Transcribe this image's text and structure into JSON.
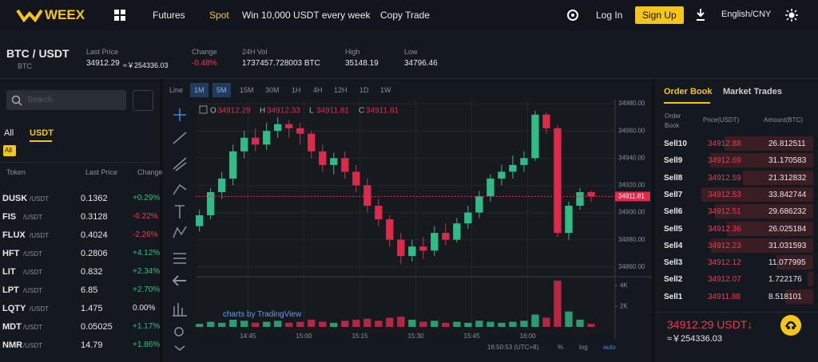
{
  "nav": {
    "logo": "WEEX",
    "items": [
      "Futures",
      "Spot",
      "Win 10,000 USDT every week",
      "Copy Trade"
    ],
    "login": "Log In",
    "signup": "Sign Up",
    "language": "English/CNY"
  },
  "ticker": {
    "pair": "BTC / USDT",
    "base": "BTC",
    "last_label": "Last Price",
    "last": "34912.29",
    "last_approx": "≈￥254336.03",
    "stats": [
      {
        "label": "Change",
        "value": "-0.48%"
      },
      {
        "label": "24H Vol",
        "value": "1737457.728003 BTC"
      },
      {
        "label": "High",
        "value": "35148.19"
      },
      {
        "label": "Low",
        "value": "34796.46"
      }
    ]
  },
  "markets": {
    "search": "Search",
    "tabs": [
      "All",
      "USDT"
    ],
    "chip": "All",
    "headers": [
      "Token",
      "Last Price",
      "Change"
    ],
    "rows": [
      {
        "token": "DUSK",
        "quote": "/USDT",
        "price": "0.1362",
        "change": "+0.29%"
      },
      {
        "token": "FIS",
        "quote": "/USDT",
        "price": "0.3128",
        "change": "-0.22%"
      },
      {
        "token": "FLUX",
        "quote": "/USDT",
        "price": "0.4024",
        "change": "-2.26%"
      },
      {
        "token": "HFT",
        "quote": "/USDT",
        "price": "0.2806",
        "change": "+4.12%"
      },
      {
        "token": "LIT",
        "quote": "/USDT",
        "price": "0.832",
        "change": "+2.34%"
      },
      {
        "token": "LPT",
        "quote": "/USDT",
        "price": "6.85",
        "change": "+2.70%"
      },
      {
        "token": "LQTY",
        "quote": "/USDT",
        "price": "1.475",
        "change": "0.00%"
      },
      {
        "token": "MDT",
        "quote": "/USDT",
        "price": "0.05025",
        "change": "+1.17%"
      },
      {
        "token": "NMR",
        "quote": "/USDT",
        "price": "14.79",
        "change": "+1.86%"
      }
    ]
  },
  "toolbar": {
    "intervals": [
      "Line",
      "1M",
      "5M",
      "15M",
      "30M",
      "1H",
      "4H",
      "12H",
      "1D",
      "1W"
    ],
    "watermark": "charts by TradingView",
    "clock": "16:50:53 (UTC+8)",
    "options": [
      "%",
      "log",
      "auto"
    ]
  },
  "chart_data": {
    "type": "candlestick",
    "up_color": "#2ebd85",
    "down_color": "#e0294a",
    "ohlc_legend": [
      {
        "key": "O",
        "value": 34912.29
      },
      {
        "key": "H",
        "value": 34912.33
      },
      {
        "key": "L",
        "value": 34911.81
      },
      {
        "key": "C",
        "value": 34911.81
      }
    ],
    "last_price": 34911.81,
    "x": [
      872,
      875,
      878,
      881,
      884,
      887,
      890,
      893,
      896,
      899,
      902,
      905,
      908,
      911,
      914,
      917,
      920,
      923,
      926,
      929,
      932,
      935,
      938,
      941,
      944,
      947,
      950,
      953,
      956,
      959,
      962,
      965,
      968,
      971,
      974,
      977
    ],
    "open": [
      34890,
      34898,
      34915,
      34925,
      34945,
      34955,
      34950,
      34960,
      34965,
      34962,
      34958,
      34945,
      34935,
      34940,
      34930,
      34920,
      34905,
      34895,
      34880,
      34868,
      34875,
      34872,
      34885,
      34880,
      34892,
      34900,
      34912,
      34925,
      34930,
      34935,
      34940,
      34972,
      34962,
      34885,
      34905,
      34915
    ],
    "high": [
      34902,
      34918,
      34930,
      34950,
      34960,
      34962,
      34966,
      34970,
      34968,
      34966,
      34960,
      34950,
      34944,
      34945,
      34935,
      34925,
      34910,
      34898,
      34885,
      34880,
      34882,
      34890,
      34892,
      34896,
      34905,
      34916,
      34928,
      34935,
      34942,
      34945,
      34975,
      34974,
      34964,
      34908,
      34918,
      34916
    ],
    "low": [
      34886,
      34895,
      34910,
      34920,
      34940,
      34945,
      34946,
      34955,
      34955,
      34950,
      34940,
      34930,
      34928,
      34925,
      34915,
      34900,
      34890,
      34875,
      34862,
      34864,
      34866,
      34868,
      34876,
      34878,
      34888,
      34896,
      34908,
      34920,
      34925,
      34930,
      34938,
      34958,
      34882,
      34880,
      34902,
      34908
    ],
    "close": [
      34898,
      34915,
      34925,
      34945,
      34955,
      34950,
      34960,
      34965,
      34962,
      34958,
      34945,
      34935,
      34940,
      34930,
      34920,
      34905,
      34895,
      34880,
      34868,
      34875,
      34872,
      34885,
      34880,
      34892,
      34900,
      34912,
      34925,
      34930,
      34935,
      34940,
      34972,
      34962,
      34885,
      34905,
      34915,
      34912
    ],
    "volume": [
      300,
      500,
      400,
      700,
      600,
      400,
      500,
      600,
      400,
      500,
      700,
      500,
      400,
      600,
      700,
      800,
      600,
      900,
      1000,
      700,
      500,
      600,
      400,
      500,
      400,
      600,
      500,
      400,
      500,
      600,
      1200,
      900,
      4500,
      1500,
      700,
      300
    ],
    "xlim": [
      871,
      983
    ],
    "xticks": [
      {
        "value": 885,
        "label": "14:45"
      },
      {
        "value": 900,
        "label": "15:00"
      },
      {
        "value": 915,
        "label": "15:15"
      },
      {
        "value": 930,
        "label": "15:30"
      },
      {
        "value": 945,
        "label": "15:45"
      },
      {
        "value": 960,
        "label": "16:00"
      }
    ],
    "ylim": [
      34854,
      34983
    ],
    "yticks": [
      {
        "value": 34860,
        "label": "34860.00"
      },
      {
        "value": 34880,
        "label": "34880.00"
      },
      {
        "value": 34900,
        "label": "34900.00"
      },
      {
        "value": 34920,
        "label": "34920.00"
      },
      {
        "value": 34940,
        "label": "34940.00"
      },
      {
        "value": 34960,
        "label": "34960.00"
      },
      {
        "value": 34980,
        "label": "34980.00"
      }
    ],
    "y2lim": [
      0,
      4500
    ],
    "y2ticks": [
      {
        "value": 2000,
        "label": "2K"
      },
      {
        "value": 4000,
        "label": "4K"
      }
    ]
  },
  "order_book": {
    "tabs": [
      "Order Book",
      "Market Trades"
    ],
    "headers": [
      "Order Book",
      "Price(USDT)",
      "Amount(BTC)"
    ],
    "rows": [
      {
        "side": "Sell10",
        "price": "34912.88",
        "amount": "26.812511"
      },
      {
        "side": "Sell9",
        "price": "34912.69",
        "amount": "31.170583"
      },
      {
        "side": "Sell8",
        "price": "34912.59",
        "amount": "21.312832"
      },
      {
        "side": "Sell7",
        "price": "34912.53",
        "amount": "33.842744"
      },
      {
        "side": "Sell6",
        "price": "34912.51",
        "amount": "29.686232"
      },
      {
        "side": "Sell5",
        "price": "34912.36",
        "amount": "26.025184"
      },
      {
        "side": "Sell4",
        "price": "34912.23",
        "amount": "31.031593"
      },
      {
        "side": "Sell3",
        "price": "34912.12",
        "amount": "11.077995"
      },
      {
        "side": "Sell2",
        "price": "34912.07",
        "amount": "1.722176"
      },
      {
        "side": "Sell1",
        "price": "34911.88",
        "amount": "8.518101"
      }
    ],
    "price": "34912.29 USDT↓",
    "approx": "≈￥254336.03"
  }
}
